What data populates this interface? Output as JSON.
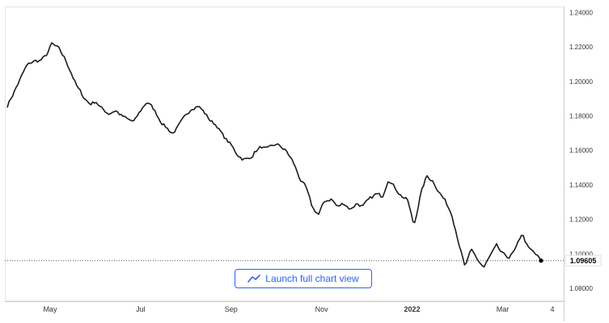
{
  "button": {
    "label": "Launch full chart view",
    "icon": "trend-line-icon",
    "color": "#2962ff"
  },
  "last_price_label": "1.09605",
  "chart_data": {
    "type": "line",
    "series": [
      {
        "values": [
          1.186,
          1.1935,
          1.201,
          1.2085,
          1.2115,
          1.212,
          1.214,
          1.2215,
          1.219,
          1.2135,
          1.206,
          1.1965,
          1.191,
          1.187,
          1.1885,
          1.1835,
          1.1815,
          1.1835,
          1.18,
          1.1775,
          1.1765,
          1.183,
          1.1885,
          1.184,
          1.178,
          1.1735,
          1.17,
          1.174,
          1.179,
          1.185,
          1.1865,
          1.182,
          1.177,
          1.1745,
          1.168,
          1.164,
          1.1585,
          1.1555,
          1.1545,
          1.1595,
          1.162,
          1.16,
          1.163,
          1.1625,
          1.159,
          1.153,
          1.144,
          1.138,
          1.1265,
          1.123,
          1.1305,
          1.132,
          1.127,
          1.1295,
          1.126,
          1.1295,
          1.1275,
          1.131,
          1.1345,
          1.133,
          1.1445,
          1.1385,
          1.134,
          1.131,
          1.116,
          1.134,
          1.145,
          1.1425,
          1.136,
          1.13,
          1.123,
          1.108,
          1.092,
          1.1015,
          1.0965,
          1.092,
          1.0985,
          1.104,
          1.099,
          1.098,
          1.102,
          1.112,
          1.103,
          1.1,
          1.09605
        ]
      }
    ],
    "x_tick_labels": [
      "May",
      "Jul",
      "Sep",
      "Nov",
      "2022",
      "Mar",
      "4"
    ],
    "y_tick_labels": [
      "1.24000",
      "1.22000",
      "1.20000",
      "1.18000",
      "1.16000",
      "1.14000",
      "1.12000",
      "1.10000",
      "1.08000"
    ],
    "y_ticks": [
      1.24,
      1.22,
      1.2,
      1.18,
      1.16,
      1.14,
      1.12,
      1.1,
      1.08
    ],
    "x_ticks_month_index": [
      1,
      3,
      5,
      7,
      9,
      11,
      12.1
    ],
    "x_range_months": [
      0,
      12.35
    ],
    "ylim": [
      1.0725,
      1.2435
    ],
    "grid": false,
    "line_color": "#1c1c1c",
    "last_value": 1.09605
  }
}
